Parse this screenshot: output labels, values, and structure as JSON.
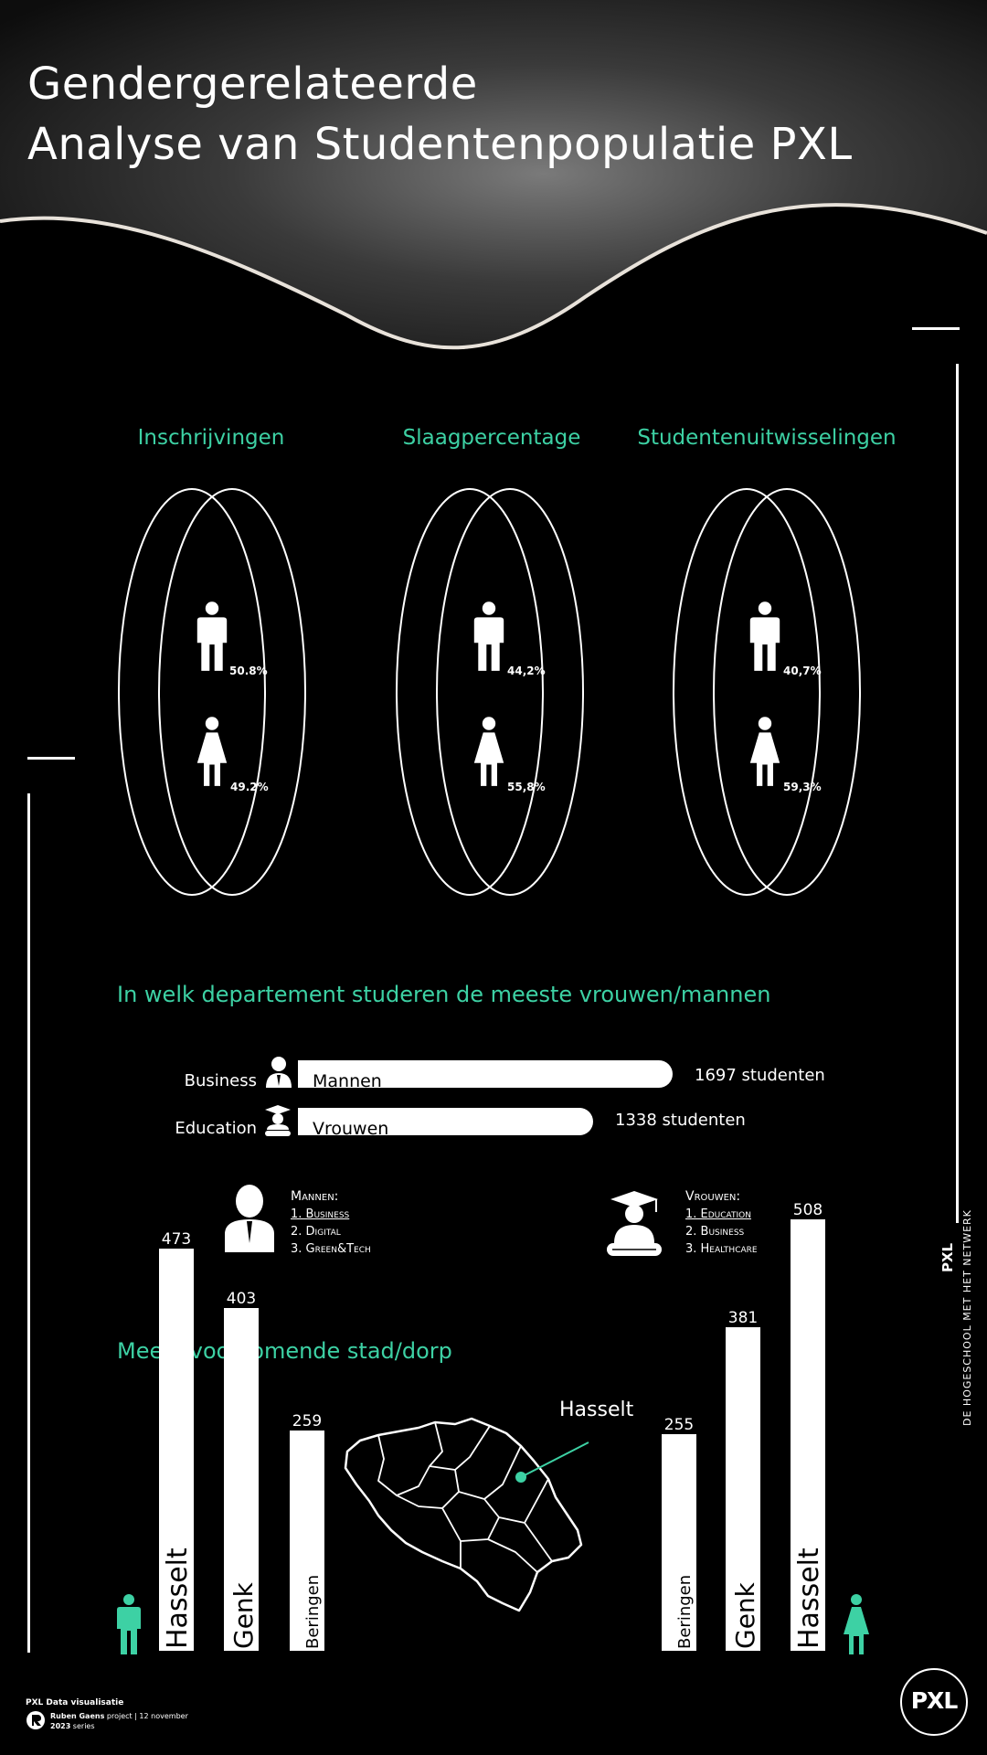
{
  "header": {
    "title_line1": "Gendergerelateerde",
    "title_line2": "Analyse van Studentenpopulatie PXL"
  },
  "gender_panels": [
    {
      "title": "Inschrijvingen",
      "male_pct": "50.8%",
      "female_pct": "49.2%"
    },
    {
      "title": "Slaagpercentage",
      "male_pct": "44,2%",
      "female_pct": "55,8%"
    },
    {
      "title": "Studentenuitwisselingen",
      "male_pct": "40,7%",
      "female_pct": "59,3%"
    }
  ],
  "department": {
    "heading": "In welk departement studeren de meeste vrouwen/mannen",
    "bars": [
      {
        "department": "Business",
        "group": "Mannen",
        "value": 1697,
        "value_label": "1697 studenten"
      },
      {
        "department": "Education",
        "group": "Vrouwen",
        "value": 1338,
        "value_label": "1338 studenten"
      }
    ],
    "men_ranking": {
      "title": "Mannen:",
      "items": [
        "1. Business",
        "2. Digital",
        "3. Green&Tech"
      ]
    },
    "women_ranking": {
      "title": "Vrouwen:",
      "items": [
        "1. Education",
        "2. Business",
        "3. Healthcare"
      ]
    }
  },
  "cities": {
    "heading": "Meest voorkomende stad/dorp",
    "map_label": "Hasselt",
    "men": [
      {
        "city": "Hasselt",
        "value": "473"
      },
      {
        "city": "Genk",
        "value": "403"
      },
      {
        "city": "Beringen",
        "value": "259"
      }
    ],
    "women": [
      {
        "city": "Beringen",
        "value": "255"
      },
      {
        "city": "Genk",
        "value": "381"
      },
      {
        "city": "Hasselt",
        "value": "508"
      }
    ]
  },
  "side": {
    "tagline": "DE HOGESCHOOL MET HET NETWERK",
    "logo_small": "PXL"
  },
  "footer": {
    "line1": "PXL Data visualisatie",
    "author": "Ruben Gaens",
    "line2_rest": " project | 12 november",
    "line3_year": "2023",
    "line3_rest": " series",
    "logo": "PXL"
  },
  "colors": {
    "accent": "#3dd1a4",
    "background": "#000000",
    "foreground": "#ffffff"
  }
}
